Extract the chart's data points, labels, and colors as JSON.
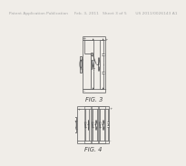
{
  "background_color": "#f0ede8",
  "header_color": "#aaaaaa",
  "header_text": "Patent Application Publication     Feb. 3, 2011   Sheet 3 of 5       US 2011/0026143 A1",
  "header_fontsize": 3.2,
  "line_color": "#666666",
  "line_width": 0.55,
  "component_color": "#555555",
  "label_color": "#444444",
  "fig3_label": "FIG. 3",
  "fig4_label": "FIG. 4",
  "label_fontsize": 4.8,
  "small_fontsize": 2.5,
  "fig3": {
    "bx": 0.22,
    "by": 0.435,
    "bw": 0.6,
    "bh": 0.38
  },
  "fig4": {
    "bx": 0.06,
    "by": 0.09,
    "bw": 0.88,
    "bh": 0.255
  }
}
